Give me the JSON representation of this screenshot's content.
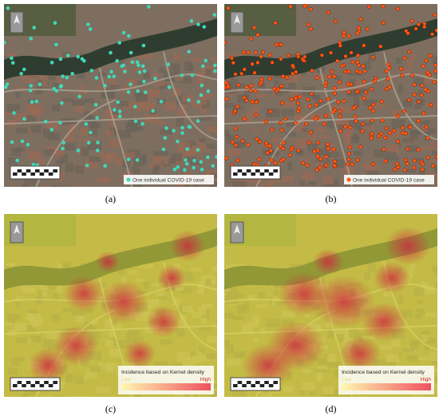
{
  "panels": [
    {
      "caption": "(a)",
      "legend": {
        "label": "One individual  COVID-19 case"
      }
    },
    {
      "caption": "(b)",
      "legend": {
        "label": "One individual  COVID-19 case"
      }
    },
    {
      "caption": "(c)",
      "legend": {
        "title": "Incidence based on Kernel density",
        "low": "Low",
        "high": "High"
      }
    },
    {
      "caption": "(d)",
      "legend": {
        "title": "Incidence based on Kernel density",
        "low": "Low",
        "high": "High"
      }
    }
  ]
}
